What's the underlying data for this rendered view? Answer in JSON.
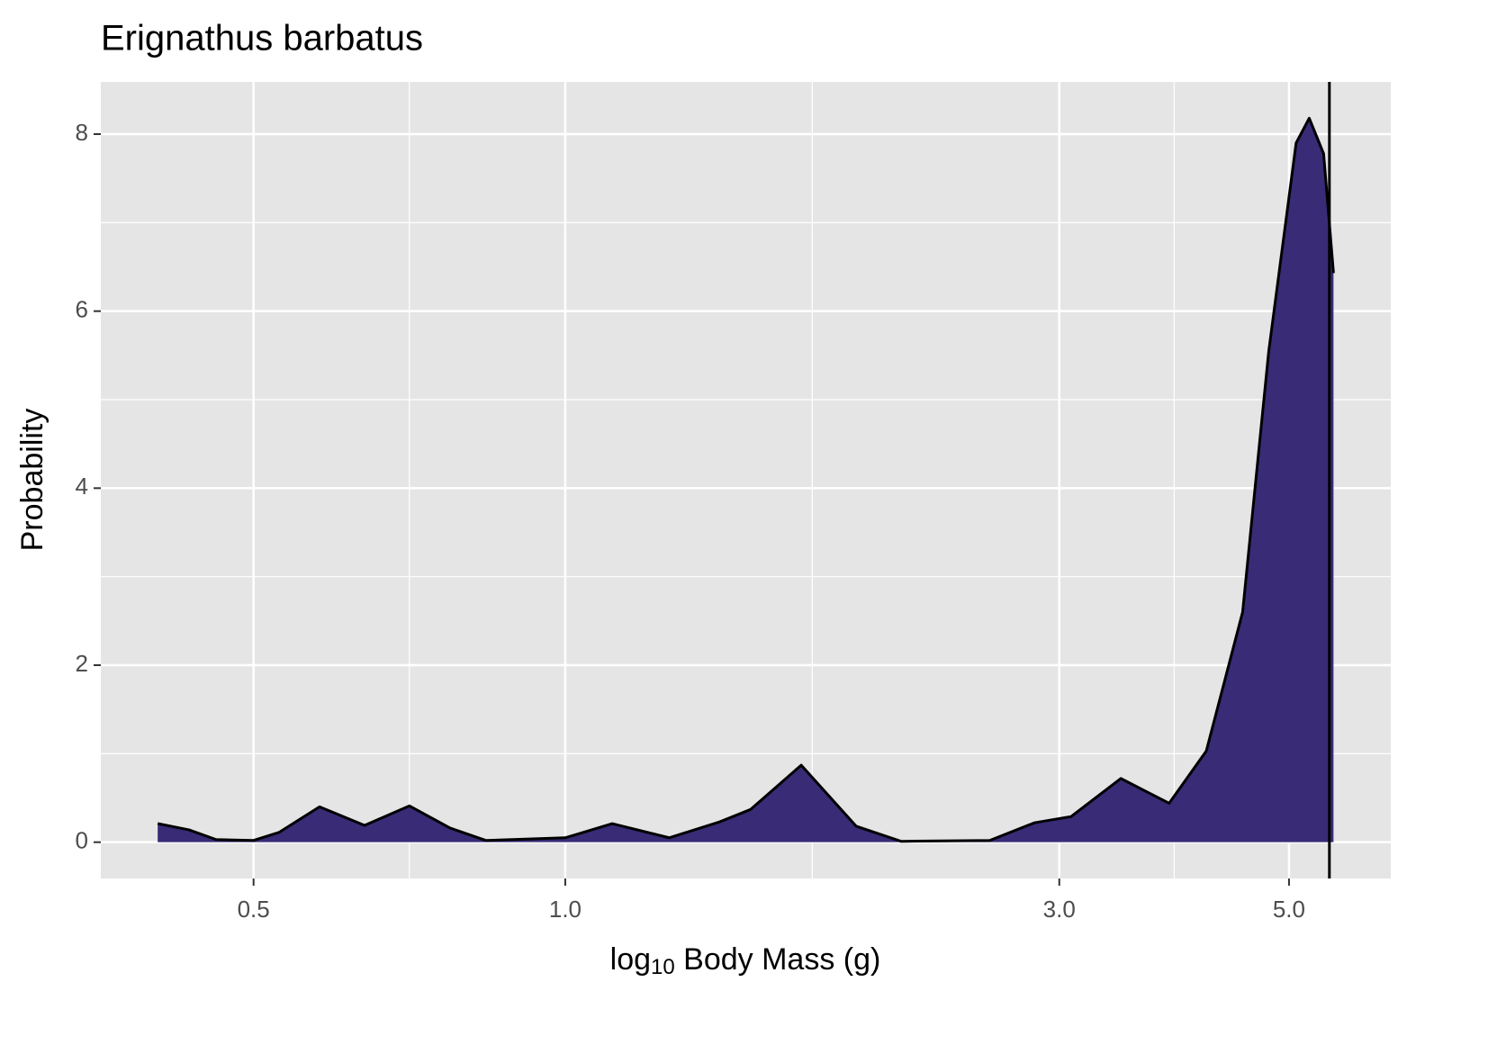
{
  "chart_data": {
    "type": "area",
    "title": "Erignathus barbatus",
    "x_label": {
      "main": "log",
      "sub": "10",
      "rest": " Body Mass (g)"
    },
    "y_label": "Probability",
    "x": [
      0.404,
      0.433,
      0.46,
      0.5,
      0.529,
      0.579,
      0.64,
      0.707,
      0.774,
      0.838,
      1.0,
      1.11,
      1.26,
      1.41,
      1.51,
      1.69,
      1.91,
      2.11,
      2.57,
      2.84,
      3.08,
      3.44,
      3.83,
      4.16,
      4.51,
      4.78,
      5.08,
      5.23,
      5.4,
      5.52
    ],
    "values": [
      0.21,
      0.14,
      0.03,
      0.02,
      0.11,
      0.4,
      0.19,
      0.41,
      0.16,
      0.02,
      0.05,
      0.21,
      0.05,
      0.23,
      0.37,
      0.87,
      0.18,
      0.01,
      0.02,
      0.22,
      0.29,
      0.72,
      0.44,
      1.03,
      2.6,
      5.55,
      7.9,
      8.18,
      7.78,
      6.43
    ],
    "color": "#392b76",
    "vline": 5.47,
    "xlog": true,
    "xlim": [
      0.356,
      6.27
    ],
    "ylim": [
      -0.41,
      8.59
    ],
    "xticks": [
      0.5,
      {
        "value": 1,
        "label": "1.0"
      },
      {
        "value": 3,
        "label": "3.0"
      },
      {
        "value": 5,
        "label": "5.0"
      }
    ],
    "yticks": [
      0,
      2,
      4,
      6,
      8
    ],
    "grid": true
  }
}
